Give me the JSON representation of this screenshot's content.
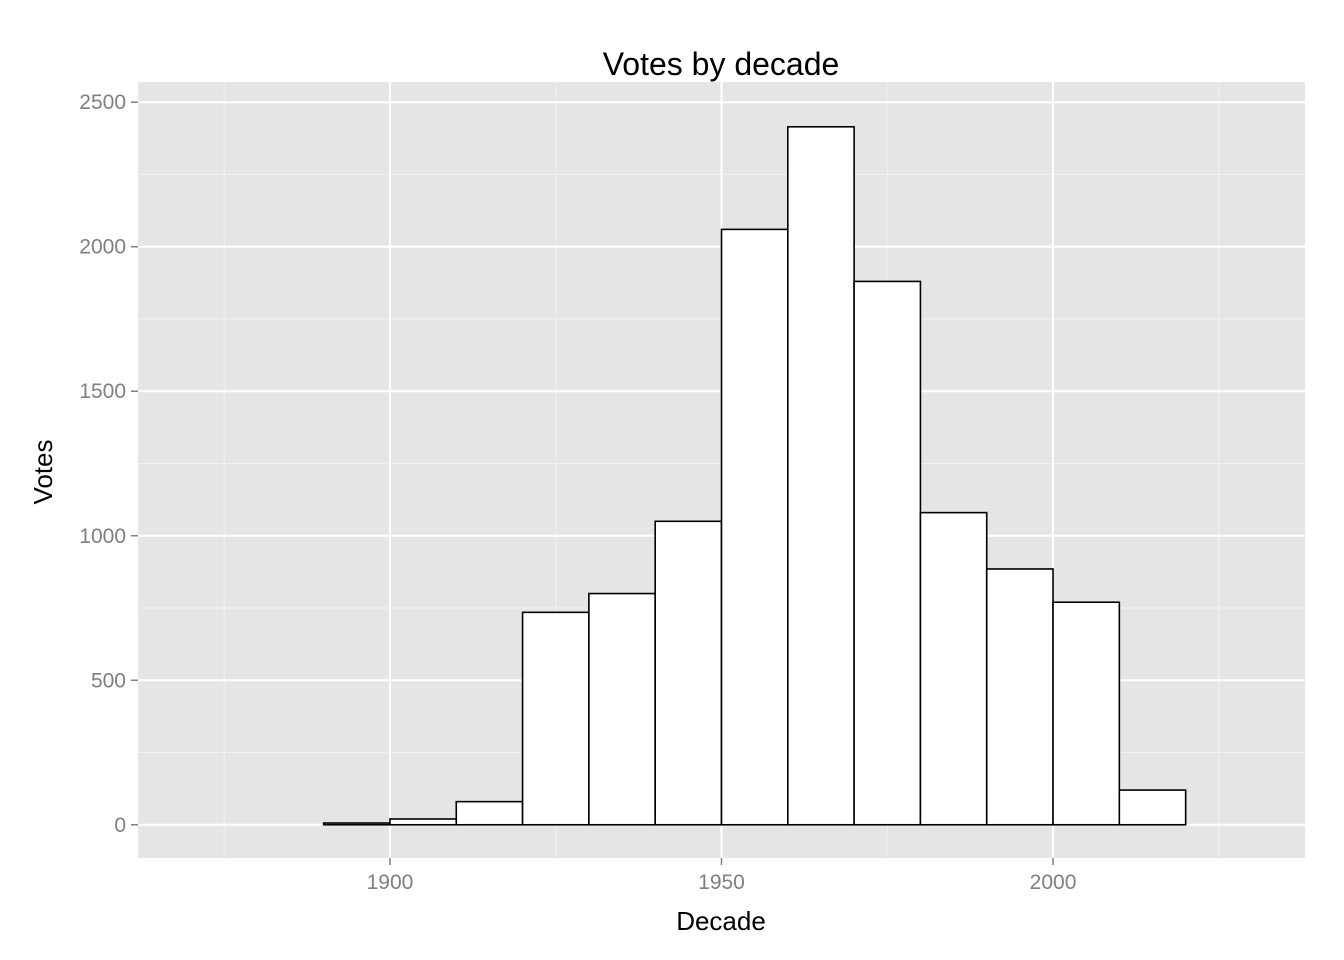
{
  "chart_data": {
    "type": "bar",
    "title": "Votes by decade",
    "xlabel": "Decade",
    "ylabel": "Votes",
    "bin_width": 10,
    "bins": [
      {
        "x0": 1870,
        "x1": 1880,
        "value": 0
      },
      {
        "x0": 1880,
        "x1": 1890,
        "value": 0
      },
      {
        "x0": 1890,
        "x1": 1900,
        "value": 6
      },
      {
        "x0": 1900,
        "x1": 1910,
        "value": 20
      },
      {
        "x0": 1910,
        "x1": 1920,
        "value": 80
      },
      {
        "x0": 1920,
        "x1": 1930,
        "value": 735
      },
      {
        "x0": 1930,
        "x1": 1940,
        "value": 800
      },
      {
        "x0": 1940,
        "x1": 1950,
        "value": 1050
      },
      {
        "x0": 1950,
        "x1": 1960,
        "value": 2060
      },
      {
        "x0": 1960,
        "x1": 1970,
        "value": 2415
      },
      {
        "x0": 1970,
        "x1": 1980,
        "value": 1880
      },
      {
        "x0": 1980,
        "x1": 1990,
        "value": 1080
      },
      {
        "x0": 1990,
        "x1": 2000,
        "value": 885
      },
      {
        "x0": 2000,
        "x1": 2010,
        "value": 770
      },
      {
        "x0": 2010,
        "x1": 2020,
        "value": 120
      },
      {
        "x0": 2020,
        "x1": 2030,
        "value": 0
      }
    ],
    "xlim": [
      1862,
      2038
    ],
    "ylim": [
      -115,
      2570
    ],
    "x_ticks": [
      1900,
      1950,
      2000
    ],
    "x_tick_labels": [
      "1900",
      "1950",
      "2000"
    ],
    "x_minor_ticks": [
      1875,
      1925,
      1975,
      2025
    ],
    "y_ticks": [
      0,
      500,
      1000,
      1500,
      2000,
      2500
    ],
    "y_tick_labels": [
      "0",
      "500",
      "1000",
      "1500",
      "2000",
      "2500"
    ],
    "y_minor_ticks": [
      250,
      750,
      1250,
      1750,
      2250
    ],
    "grid": true,
    "legend": "none",
    "colors": {
      "panel_background": "#e5e5e5",
      "grid_major": "#ffffff",
      "grid_minor": "#f2f2f2",
      "bar_fill": "#ffffff",
      "bar_outline": "#000000",
      "tick_label": "#7f7f7f"
    }
  }
}
